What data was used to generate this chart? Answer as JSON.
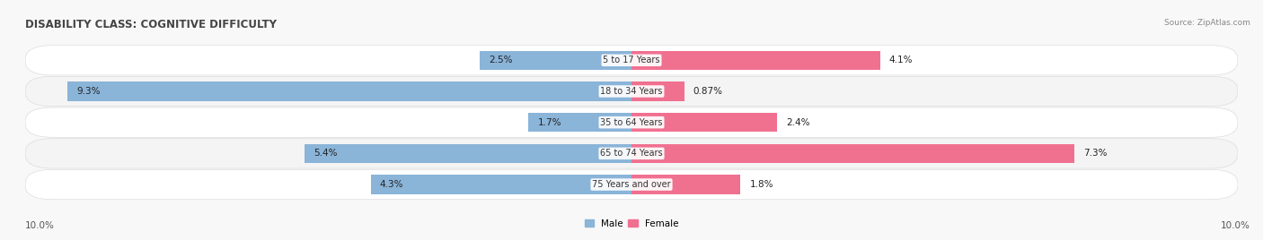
{
  "title": "DISABILITY CLASS: COGNITIVE DIFFICULTY",
  "source": "Source: ZipAtlas.com",
  "categories": [
    "5 to 17 Years",
    "18 to 34 Years",
    "35 to 64 Years",
    "65 to 74 Years",
    "75 Years and over"
  ],
  "male_values": [
    2.5,
    9.3,
    1.7,
    5.4,
    4.3
  ],
  "female_values": [
    4.1,
    0.87,
    2.4,
    7.3,
    1.8
  ],
  "male_labels": [
    "2.5%",
    "9.3%",
    "1.7%",
    "5.4%",
    "4.3%"
  ],
  "female_labels": [
    "4.1%",
    "0.87%",
    "2.4%",
    "7.3%",
    "1.8%"
  ],
  "male_color": "#8ab4d8",
  "female_color": "#f07090",
  "male_color_light": "#b8d0e8",
  "female_color_light": "#f8b0c0",
  "row_bg_color": "#f0f0f0",
  "fig_bg_color": "#f8f8f8",
  "xlim": 10.0,
  "axis_label_left": "10.0%",
  "axis_label_right": "10.0%",
  "title_fontsize": 8.5,
  "label_fontsize": 7.5,
  "category_fontsize": 7.0,
  "bar_height": 0.62
}
